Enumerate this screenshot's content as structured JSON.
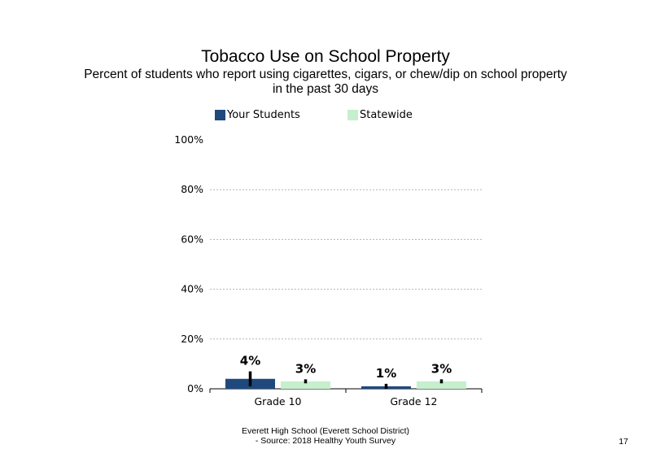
{
  "chart_data": {
    "type": "bar",
    "title": "Tobacco Use on School Property",
    "subtitle_lines": [
      "Percent of students who report using cigarettes, cigars, or chew/dip on school property",
      "in the past 30 days"
    ],
    "categories": [
      "Grade 10",
      "Grade 12"
    ],
    "series": [
      {
        "name": "Your Students",
        "values": [
          4,
          1
        ],
        "labels": [
          "4%",
          "1%"
        ],
        "error_high": [
          7,
          2
        ],
        "error_low": [
          1,
          0
        ],
        "color": "#1f497d"
      },
      {
        "name": "Statewide",
        "values": [
          3,
          3
        ],
        "labels": [
          "3%",
          "3%"
        ],
        "error_high": [
          3.8,
          3.8
        ],
        "error_low": [
          2.2,
          2.2
        ],
        "color": "#c6efce"
      }
    ],
    "ylim": [
      0,
      100
    ],
    "yticks": [
      0,
      20,
      40,
      60,
      80,
      100
    ],
    "ytick_labels": [
      "0%",
      "20%",
      "40%",
      "60%",
      "80%",
      "100%"
    ],
    "grid": true,
    "legend_position": "top"
  },
  "footer": {
    "line1": "Everett High  School (Everett School District)",
    "line2": "- Source: 2018 Healthy  Youth Survey",
    "page_number": "17"
  }
}
